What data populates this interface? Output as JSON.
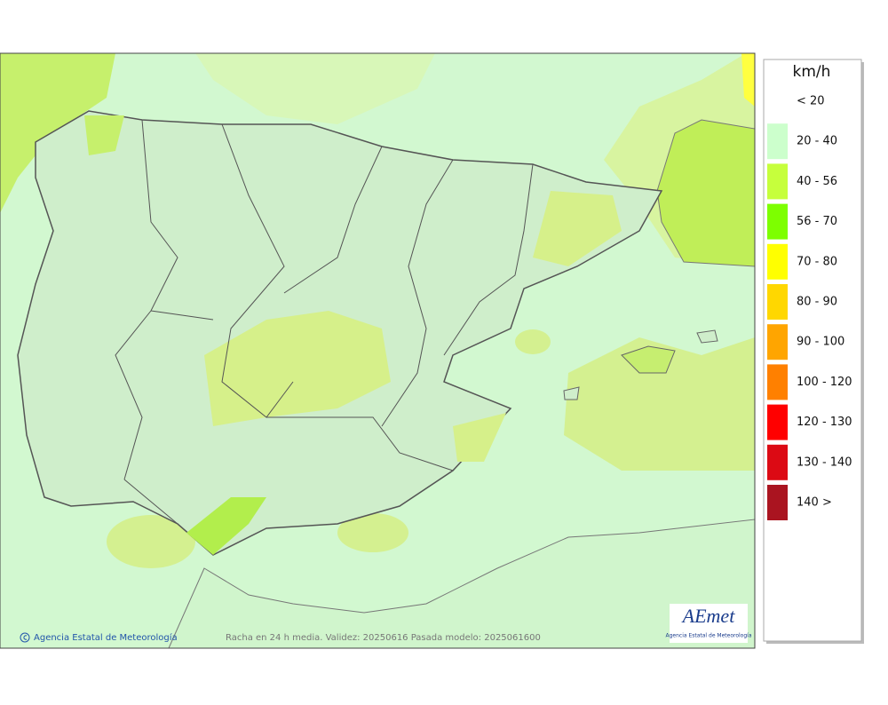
{
  "legend": {
    "title": "km/h",
    "items": [
      {
        "label": "< 20",
        "color": "#ffffff"
      },
      {
        "label": "20 - 40",
        "color": "#ccffcc"
      },
      {
        "label": "40 - 56",
        "color": "#c6ff3c"
      },
      {
        "label": "56 - 70",
        "color": "#7dff00"
      },
      {
        "label": "70 - 80",
        "color": "#ffff00"
      },
      {
        "label": "80 - 90",
        "color": "#ffd700"
      },
      {
        "label": "90 - 100",
        "color": "#ffa500"
      },
      {
        "label": "100 - 120",
        "color": "#ff8000"
      },
      {
        "label": "120 - 130",
        "color": "#ff0000"
      },
      {
        "label": "130 - 140",
        "color": "#dc0a14"
      },
      {
        "label": "140 >",
        "color": "#aa1420"
      }
    ]
  },
  "footer": {
    "credit": "Agencia Estatal de Meteorología",
    "caption": "Racha en 24 h media. Validez: 20250616 Pasada modelo: 2025061600"
  },
  "logo": {
    "name": "AEmet",
    "subtitle": "Agencia Estatal de Meteorología"
  }
}
